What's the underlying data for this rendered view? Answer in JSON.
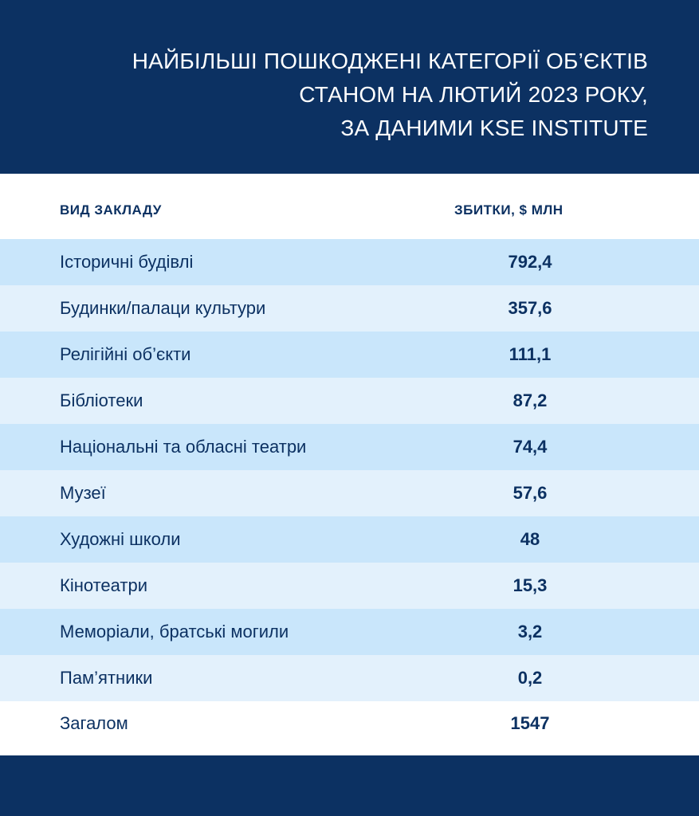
{
  "colors": {
    "navy": "#0c3162",
    "row_dark": "#c9e6fb",
    "row_light": "#e3f1fc",
    "text": "#0c3162"
  },
  "chart_data": {
    "type": "table",
    "title_lines": [
      "НАЙБІЛЬШІ ПОШКОДЖЕНІ КАТЕГОРІЇ ОБ’ЄКТІВ",
      "СТАНОМ НА ЛЮТИЙ 2023 РОКУ,",
      "ЗА ДАНИМИ KSE INSTITUTE"
    ],
    "columns": [
      "ВИД ЗАКЛАДУ",
      "ЗБИТКИ, $ МЛН"
    ],
    "rows": [
      {
        "category": "Історичні будівлі",
        "value": "792,4"
      },
      {
        "category": "Будинки/палаци культури",
        "value": "357,6"
      },
      {
        "category": "Релігійні об’єкти",
        "value": "111,1"
      },
      {
        "category": "Бібліотеки",
        "value": "87,2"
      },
      {
        "category": "Національні та обласні театри",
        "value": "74,4"
      },
      {
        "category": "Музеї",
        "value": "57,6"
      },
      {
        "category": "Художні школи",
        "value": "48"
      },
      {
        "category": "Кінотеатри",
        "value": "15,3"
      },
      {
        "category": "Меморіали, братські могили",
        "value": "3,2"
      },
      {
        "category": "Пам’ятники",
        "value": "0,2"
      }
    ],
    "total": {
      "category": "Загалом",
      "value": "1547"
    }
  }
}
